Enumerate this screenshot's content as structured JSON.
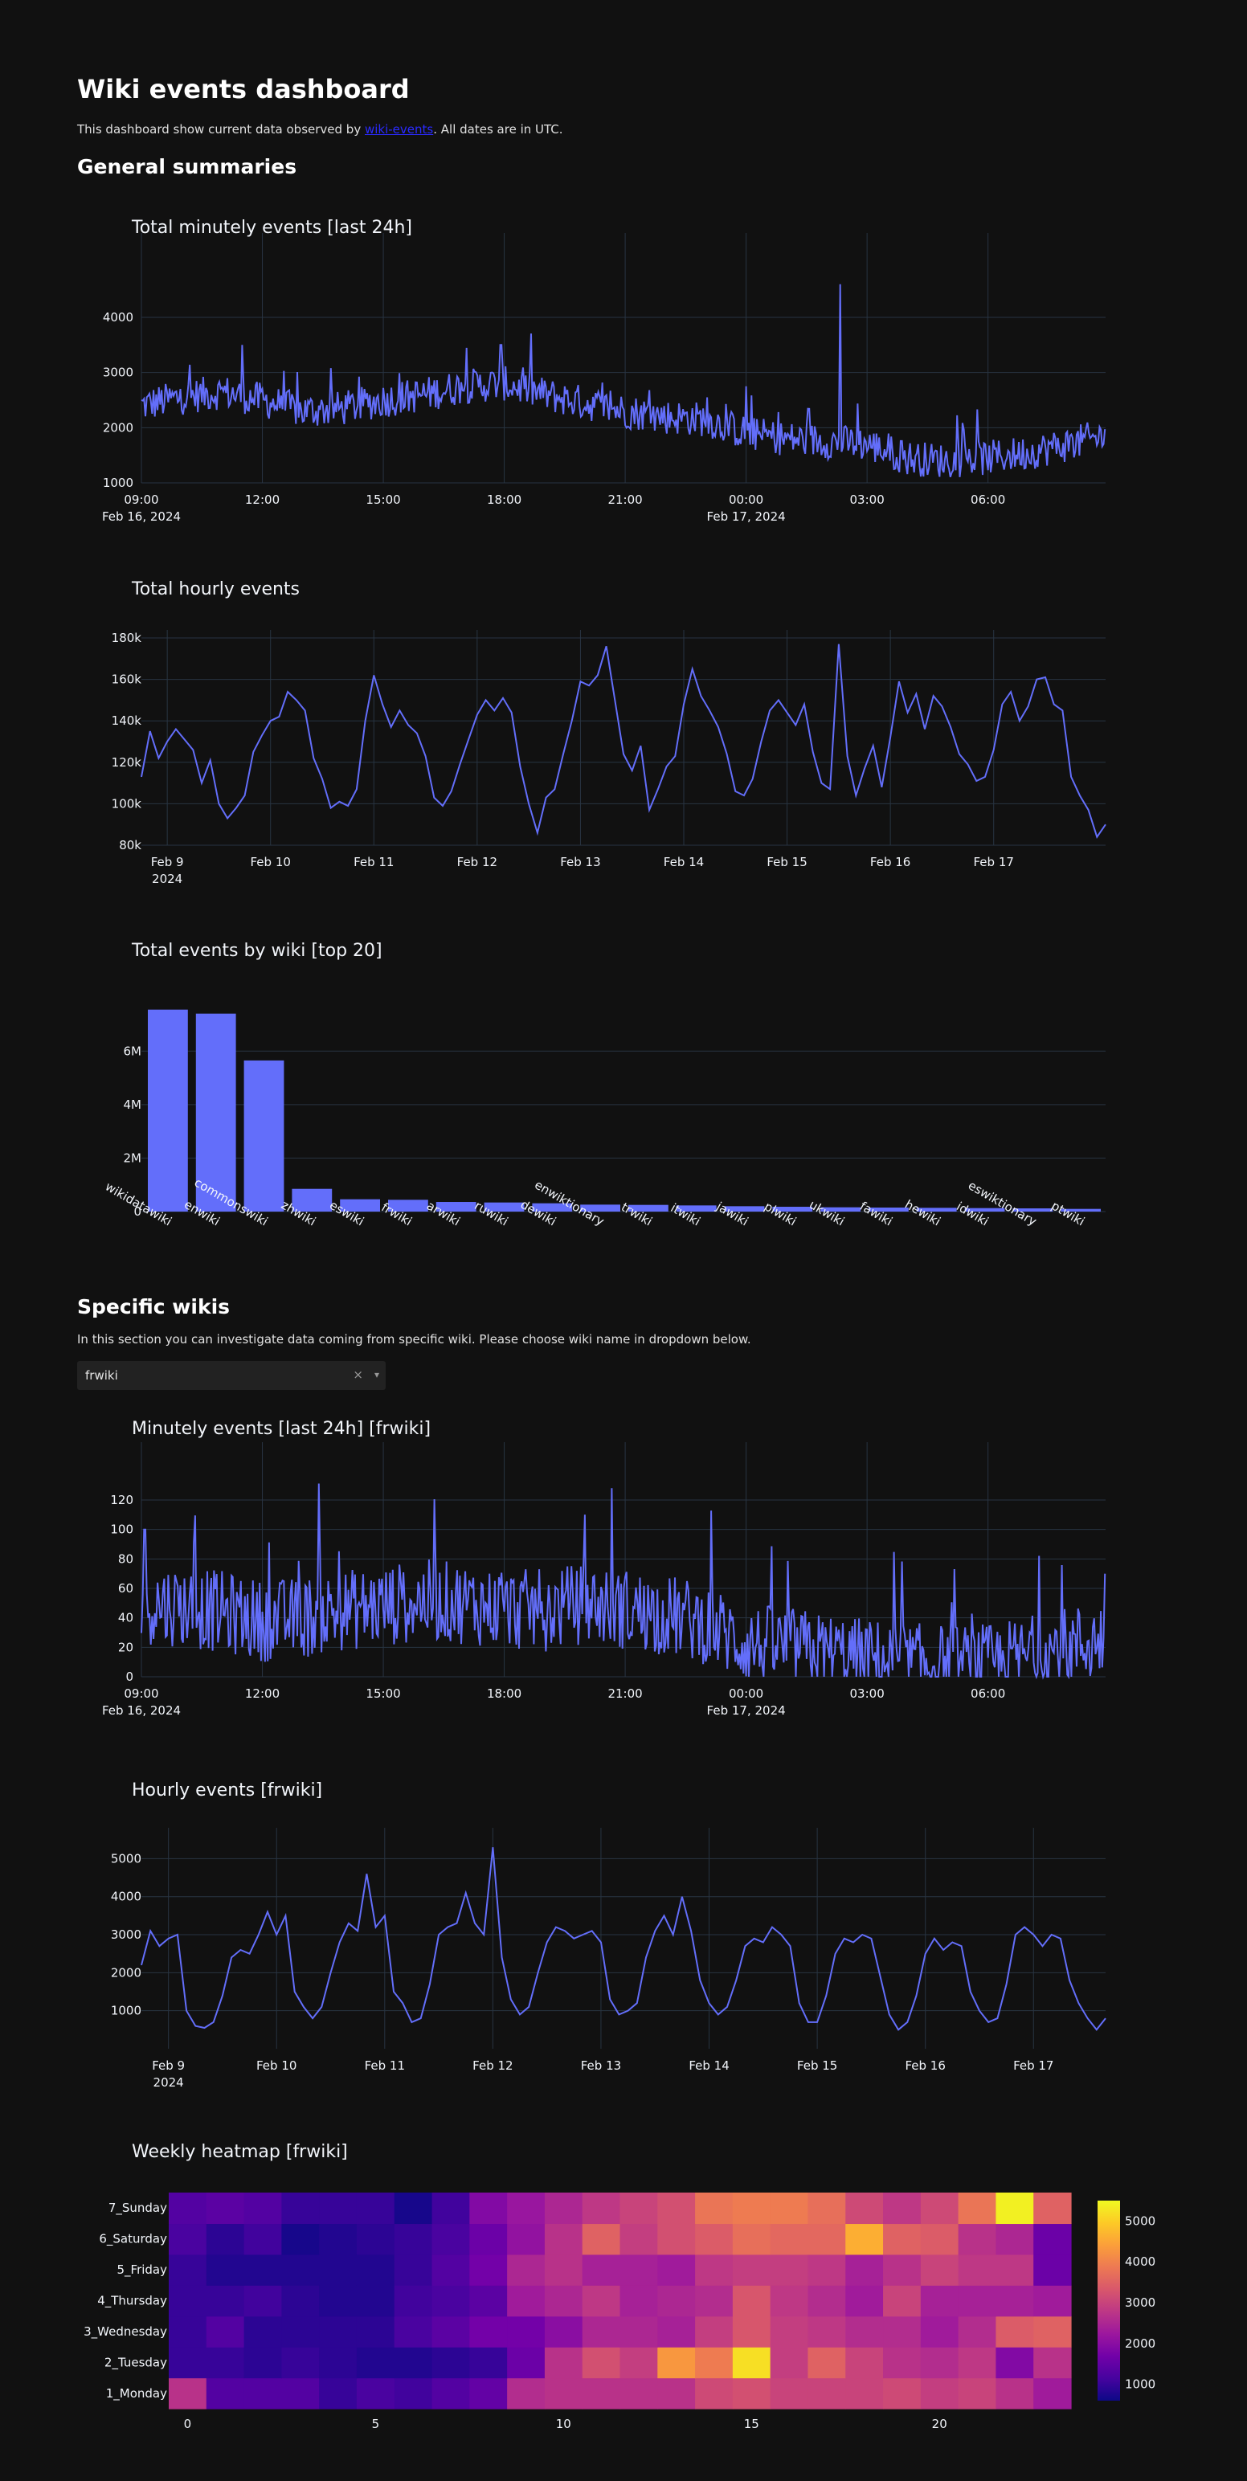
{
  "page": {
    "title": "Wiki events dashboard",
    "intro_before": "This dashboard show current data observed by ",
    "intro_link": "wiki-events",
    "intro_after": ". All dates are in UTC.",
    "section_general": "General summaries",
    "section_specific": "Specific wikis",
    "specific_note": "In this section you can investigate data coming from specific wiki. Please choose wiki name in dropdown below.",
    "dropdown_value": "frwiki",
    "dropdown_clear": "×",
    "dropdown_chevron": "▾"
  },
  "colors": {
    "bg": "#111111",
    "line": "#636efa",
    "grid": "#283442",
    "text": "#f2f5fa"
  },
  "chart_data": [
    {
      "id": "minutely_total",
      "type": "line",
      "title": "Total minutely events [last 24h]",
      "xrange": [
        "2024-02-16 09:00",
        "2024-02-17 08:55"
      ],
      "xticks": [
        "09:00",
        "12:00",
        "15:00",
        "18:00",
        "21:00",
        "00:00",
        "03:00",
        "06:00"
      ],
      "xtick_dates": {
        "09:00": "Feb 16, 2024",
        "00:00": "Feb 17, 2024"
      },
      "yticks": [
        "1000",
        "2000",
        "3000",
        "4000"
      ],
      "ylim": [
        1000,
        4800
      ],
      "profile_x": [
        "09:00",
        "10:00",
        "11:00",
        "12:00",
        "13:00",
        "14:00",
        "15:00",
        "16:00",
        "17:00",
        "18:00",
        "19:00",
        "20:00",
        "21:00",
        "22:00",
        "23:00",
        "00:00",
        "01:00",
        "02:00",
        "03:00",
        "04:00",
        "05:00",
        "06:00",
        "07:00",
        "08:00",
        "08:55"
      ],
      "profile_y": [
        2400,
        2550,
        2650,
        2500,
        2300,
        2350,
        2500,
        2600,
        2750,
        2800,
        2600,
        2450,
        2300,
        2200,
        2150,
        1900,
        1800,
        1750,
        1700,
        1450,
        1400,
        1450,
        1550,
        1700,
        1850
      ],
      "noise": 320,
      "spikes": [
        {
          "x": "02:20",
          "y": 4600
        },
        {
          "x": "11:30",
          "y": 3500
        },
        {
          "x": "17:55",
          "y": 3500
        },
        {
          "x": "00:00",
          "y": 2750
        }
      ]
    },
    {
      "id": "hourly_total",
      "type": "line",
      "title": "Total hourly events",
      "xticks": [
        "Feb 9",
        "Feb 10",
        "Feb 11",
        "Feb 12",
        "Feb 13",
        "Feb 14",
        "Feb 15",
        "Feb 16",
        "Feb 17"
      ],
      "xtick_sub": {
        "Feb 9": "2024"
      },
      "x_start": "2024-02-08 18:00",
      "x_step_hours": 2,
      "yticks": [
        "80k",
        "100k",
        "120k",
        "140k",
        "160k",
        "180k"
      ],
      "ylim": [
        80000,
        180000
      ],
      "y": [
        113000,
        135000,
        122000,
        130000,
        136000,
        131000,
        126000,
        110000,
        121000,
        100000,
        93000,
        98000,
        104000,
        125000,
        133000,
        140000,
        142000,
        154000,
        150000,
        145000,
        122000,
        112000,
        98000,
        101000,
        99000,
        107000,
        140000,
        162000,
        148000,
        137000,
        145000,
        138000,
        134000,
        123000,
        103000,
        99000,
        106000,
        119000,
        131000,
        143000,
        150000,
        145000,
        151000,
        144000,
        118000,
        100000,
        86000,
        103000,
        107000,
        124000,
        140000,
        159000,
        157000,
        162000,
        176000,
        150000,
        124000,
        116000,
        128000,
        97000,
        107000,
        118000,
        123000,
        148000,
        165000,
        152000,
        145000,
        137000,
        124000,
        106000,
        104000,
        112000,
        130000,
        145000,
        150000,
        144000,
        138000,
        148000,
        125000,
        110000,
        107000,
        177000,
        123000,
        104000,
        117000,
        128000,
        108000,
        132000,
        159000,
        144000,
        153000,
        136000,
        152000,
        147000,
        137000,
        124000,
        119000,
        111000,
        113000,
        126000,
        148000,
        154000,
        140000,
        147000,
        160000,
        161000,
        148000,
        145000,
        113000,
        104000,
        97000,
        84000,
        90000
      ]
    },
    {
      "id": "wiki_bar",
      "type": "bar",
      "title": "Total events by wiki [top 20]",
      "categories": [
        "wikidatawiki",
        "enwiki",
        "commonswiki",
        "zhwiki",
        "eswiki",
        "frwiki",
        "arwiki",
        "ruwiki",
        "dewiki",
        "enwiktionary",
        "trwiki",
        "itwiki",
        "jawiki",
        "plwiki",
        "ukwiki",
        "fawiki",
        "hewiki",
        "idwiki",
        "eswiktionary",
        "ptwiki"
      ],
      "values": [
        7550000,
        7400000,
        5650000,
        850000,
        460000,
        440000,
        360000,
        340000,
        310000,
        260000,
        250000,
        230000,
        200000,
        180000,
        160000,
        150000,
        140000,
        130000,
        120000,
        100000
      ],
      "yticks": [
        "0",
        "2M",
        "4M",
        "6M"
      ],
      "ylim": [
        0,
        7900000
      ]
    },
    {
      "id": "minutely_frwiki",
      "type": "line",
      "title": "Minutely events [last 24h] [frwiki]",
      "xticks": [
        "09:00",
        "12:00",
        "15:00",
        "18:00",
        "21:00",
        "00:00",
        "03:00",
        "06:00"
      ],
      "xtick_dates": {
        "09:00": "Feb 16, 2024",
        "00:00": "Feb 17, 2024"
      },
      "yticks": [
        "0",
        "20",
        "40",
        "60",
        "80",
        "100",
        "120"
      ],
      "ylim": [
        0,
        132
      ],
      "profile_x": [
        "09:00",
        "10:00",
        "11:00",
        "12:00",
        "13:00",
        "14:00",
        "15:00",
        "16:00",
        "17:00",
        "18:00",
        "19:00",
        "20:00",
        "21:00",
        "22:00",
        "23:00",
        "00:00",
        "01:00",
        "02:00",
        "03:00",
        "04:00",
        "05:00",
        "06:00",
        "07:00",
        "08:00",
        "08:55"
      ],
      "profile_y": [
        50,
        48,
        44,
        38,
        40,
        45,
        48,
        52,
        50,
        46,
        45,
        50,
        46,
        42,
        36,
        22,
        20,
        16,
        12,
        9,
        8,
        8,
        14,
        20,
        26
      ],
      "noise": 28,
      "spikes": [
        {
          "x": "20:40",
          "y": 128
        },
        {
          "x": "09:05",
          "y": 100
        },
        {
          "x": "20:00",
          "y": 110
        },
        {
          "x": "08:55",
          "y": 70
        }
      ]
    },
    {
      "id": "hourly_frwiki",
      "type": "line",
      "title": "Hourly events [frwiki]",
      "xticks": [
        "Feb 9",
        "Feb 10",
        "Feb 11",
        "Feb 12",
        "Feb 13",
        "Feb 14",
        "Feb 15",
        "Feb 16",
        "Feb 17"
      ],
      "xtick_sub": {
        "Feb 9": "2024"
      },
      "x_start": "2024-02-08 18:00",
      "x_step_hours": 2,
      "yticks": [
        "1000",
        "2000",
        "3000",
        "4000",
        "5000"
      ],
      "ylim": [
        0,
        5600
      ],
      "y": [
        2200,
        3100,
        2700,
        2900,
        3000,
        1000,
        600,
        550,
        700,
        1400,
        2400,
        2600,
        2500,
        3000,
        3600,
        3000,
        3500,
        1500,
        1100,
        800,
        1100,
        2000,
        2800,
        3300,
        3100,
        4600,
        3200,
        3500,
        1500,
        1200,
        700,
        800,
        1700,
        3000,
        3200,
        3300,
        4100,
        3300,
        3000,
        5300,
        2400,
        1300,
        900,
        1100,
        2000,
        2800,
        3200,
        3100,
        2900,
        3000,
        3100,
        2800,
        1300,
        900,
        1000,
        1200,
        2400,
        3100,
        3500,
        3000,
        4000,
        3100,
        1800,
        1200,
        900,
        1100,
        1800,
        2700,
        2900,
        2800,
        3200,
        3000,
        2700,
        1200,
        700,
        700,
        1400,
        2500,
        2900,
        2800,
        3000,
        2900,
        1900,
        900,
        500,
        700,
        1400,
        2500,
        2900,
        2600,
        2800,
        2700,
        1500,
        1000,
        700,
        800,
        1700,
        3000,
        3200,
        3000,
        2700,
        3000,
        2900,
        1800,
        1200,
        800,
        500,
        800
      ]
    },
    {
      "id": "weekly_heatmap",
      "type": "heatmap",
      "title": "Weekly heatmap [frwiki]",
      "y_categories": [
        "1_Monday",
        "2_Tuesday",
        "3_Wednesday",
        "4_Thursday",
        "5_Friday",
        "6_Saturday",
        "7_Sunday"
      ],
      "xticks": [
        "0",
        "5",
        "10",
        "15",
        "20"
      ],
      "x_hours": 24,
      "colorbar_ticks": [
        "1000",
        "2000",
        "3000",
        "4000",
        "5000"
      ],
      "zlim": [
        600,
        5500
      ],
      "z": [
        [
          2700,
          1300,
          1300,
          1300,
          1000,
          1200,
          1100,
          1300,
          1500,
          2600,
          2700,
          2700,
          2700,
          2700,
          3100,
          3200,
          3000,
          3000,
          3000,
          3100,
          2900,
          3000,
          2700,
          2300
        ],
        [
          1000,
          1000,
          900,
          1000,
          900,
          800,
          800,
          900,
          1000,
          1600,
          2700,
          3200,
          2900,
          4300,
          3900,
          5200,
          2900,
          3500,
          3000,
          2700,
          2600,
          2800,
          1900,
          2700
        ],
        [
          1000,
          1300,
          900,
          900,
          900,
          900,
          1200,
          1400,
          1700,
          1700,
          2000,
          2500,
          2500,
          2400,
          2900,
          3300,
          2900,
          2800,
          2600,
          2600,
          2300,
          2600,
          3400,
          3500
        ],
        [
          1000,
          1000,
          1100,
          900,
          800,
          800,
          1100,
          1200,
          1400,
          2300,
          2500,
          2800,
          2400,
          2500,
          2600,
          3300,
          2800,
          2600,
          2300,
          3000,
          2400,
          2400,
          2400,
          2300
        ],
        [
          1000,
          800,
          800,
          800,
          800,
          800,
          1000,
          1300,
          1700,
          2500,
          2700,
          2400,
          2400,
          2300,
          2800,
          2900,
          2900,
          2800,
          2400,
          2700,
          3000,
          2800,
          2800,
          1600
        ],
        [
          1200,
          900,
          1100,
          700,
          800,
          900,
          1000,
          1200,
          1600,
          2100,
          2700,
          3500,
          2900,
          3200,
          3400,
          3700,
          3600,
          3600,
          4600,
          3500,
          3400,
          2700,
          2500,
          1600
        ],
        [
          1300,
          1400,
          1300,
          1000,
          1000,
          1000,
          700,
          1100,
          1900,
          2200,
          2500,
          2800,
          3000,
          3200,
          3800,
          3900,
          3900,
          3700,
          3100,
          2800,
          3100,
          3800,
          5400,
          3500
        ]
      ]
    }
  ]
}
